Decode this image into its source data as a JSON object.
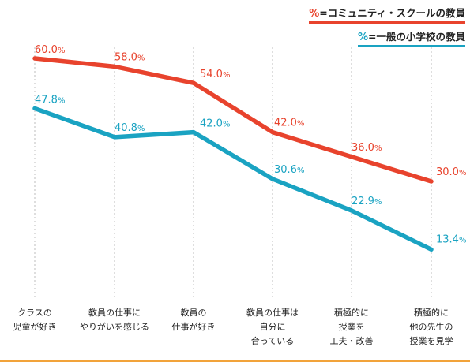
{
  "legend": {
    "community": {
      "symbol": "%",
      "text": "=コミュニティ・スクールの教員",
      "color": "#e8432d"
    },
    "general": {
      "symbol": "%",
      "text": "=一般の小学校の教員",
      "color": "#1aa3c2"
    }
  },
  "chart_data": {
    "type": "line",
    "categories": [
      "クラスの\n児童が好き",
      "教員の仕事に\nやりがいを感じる",
      "教員の\n仕事が好き",
      "教員の仕事は\n自分に\n合っている",
      "積極的に\n授業を\n工夫・改善",
      "積極的に\n他の先生の\n授業を見学"
    ],
    "series": [
      {
        "name": "%=コミュニティ・スクールの教員",
        "color": "#e8432d",
        "values": [
          60.0,
          58.0,
          54.0,
          42.0,
          36.0,
          30.0
        ]
      },
      {
        "name": "%=一般の小学校の教員",
        "color": "#1aa3c2",
        "values": [
          47.8,
          40.8,
          42.0,
          30.6,
          22.9,
          13.4
        ]
      }
    ],
    "value_suffix": "%",
    "title": "",
    "xlabel": "",
    "ylabel": "",
    "ylim": [
      0,
      65
    ],
    "grid": "vertical-dotted",
    "legend_position": "top-right"
  }
}
